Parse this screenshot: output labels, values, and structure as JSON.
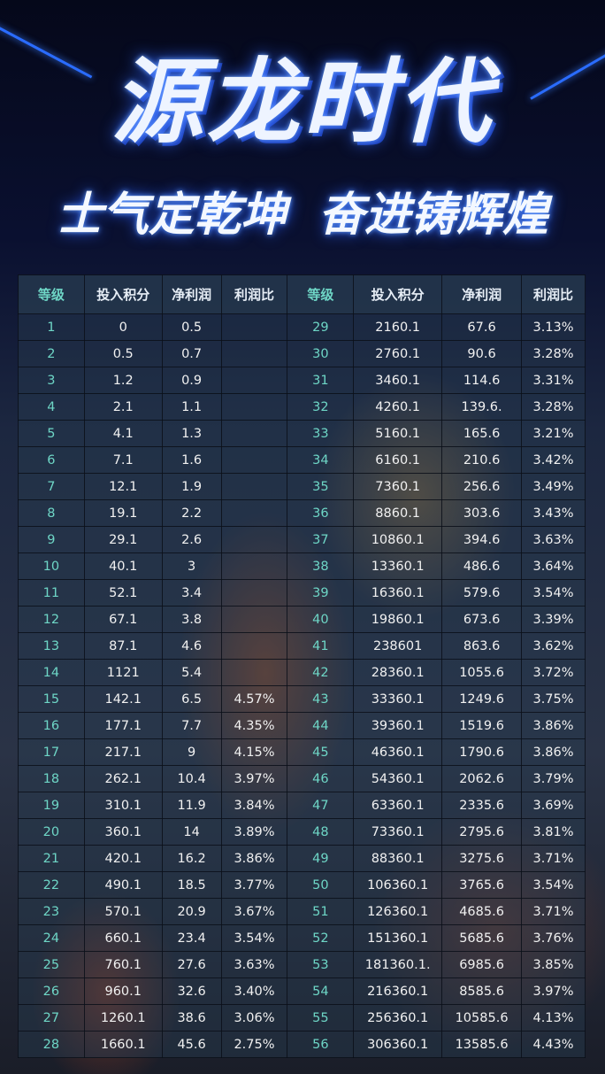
{
  "title": "源龙时代",
  "subtitle": "士气定乾坤 奋进铸辉煌",
  "headers": [
    "等级",
    "投入积分",
    "净利润",
    "利润比",
    "等级",
    "投入积分",
    "净利润",
    "利润比"
  ],
  "rows_left": [
    [
      "1",
      "0",
      "0.5",
      ""
    ],
    [
      "2",
      "0.5",
      "0.7",
      ""
    ],
    [
      "3",
      "1.2",
      "0.9",
      ""
    ],
    [
      "4",
      "2.1",
      "1.1",
      ""
    ],
    [
      "5",
      "4.1",
      "1.3",
      ""
    ],
    [
      "6",
      "7.1",
      "1.6",
      ""
    ],
    [
      "7",
      "12.1",
      "1.9",
      ""
    ],
    [
      "8",
      "19.1",
      "2.2",
      ""
    ],
    [
      "9",
      "29.1",
      "2.6",
      ""
    ],
    [
      "10",
      "40.1",
      "3",
      ""
    ],
    [
      "11",
      "52.1",
      "3.4",
      ""
    ],
    [
      "12",
      "67.1",
      "3.8",
      ""
    ],
    [
      "13",
      "87.1",
      "4.6",
      ""
    ],
    [
      "14",
      "1121",
      "5.4",
      ""
    ],
    [
      "15",
      "142.1",
      "6.5",
      "4.57%"
    ],
    [
      "16",
      "177.1",
      "7.7",
      "4.35%"
    ],
    [
      "17",
      "217.1",
      "9",
      "4.15%"
    ],
    [
      "18",
      "262.1",
      "10.4",
      "3.97%"
    ],
    [
      "19",
      "310.1",
      "11.9",
      "3.84%"
    ],
    [
      "20",
      "360.1",
      "14",
      "3.89%"
    ],
    [
      "21",
      "420.1",
      "16.2",
      "3.86%"
    ],
    [
      "22",
      "490.1",
      "18.5",
      "3.77%"
    ],
    [
      "23",
      "570.1",
      "20.9",
      "3.67%"
    ],
    [
      "24",
      "660.1",
      "23.4",
      "3.54%"
    ],
    [
      "25",
      "760.1",
      "27.6",
      "3.63%"
    ],
    [
      "26",
      "960.1",
      "32.6",
      "3.40%"
    ],
    [
      "27",
      "1260.1",
      "38.6",
      "3.06%"
    ],
    [
      "28",
      "1660.1",
      "45.6",
      "2.75%"
    ]
  ],
  "rows_right": [
    [
      "29",
      "2160.1",
      "67.6",
      "3.13%"
    ],
    [
      "30",
      "2760.1",
      "90.6",
      "3.28%"
    ],
    [
      "31",
      "3460.1",
      "114.6",
      "3.31%"
    ],
    [
      "32",
      "4260.1",
      "139.6.",
      "3.28%"
    ],
    [
      "33",
      "5160.1",
      "165.6",
      "3.21%"
    ],
    [
      "34",
      "6160.1",
      "210.6",
      "3.42%"
    ],
    [
      "35",
      "7360.1",
      "256.6",
      "3.49%"
    ],
    [
      "36",
      "8860.1",
      "303.6",
      "3.43%"
    ],
    [
      "37",
      "10860.1",
      "394.6",
      "3.63%"
    ],
    [
      "38",
      "13360.1",
      "486.6",
      "3.64%"
    ],
    [
      "39",
      "16360.1",
      "579.6",
      "3.54%"
    ],
    [
      "40",
      "19860.1",
      "673.6",
      "3.39%"
    ],
    [
      "41",
      "238601",
      "863.6",
      "3.62%"
    ],
    [
      "42",
      "28360.1",
      "1055.6",
      "3.72%"
    ],
    [
      "43",
      "33360.1",
      "1249.6",
      "3.75%"
    ],
    [
      "44",
      "39360.1",
      "1519.6",
      "3.86%"
    ],
    [
      "45",
      "46360.1",
      "1790.6",
      "3.86%"
    ],
    [
      "46",
      "54360.1",
      "2062.6",
      "3.79%"
    ],
    [
      "47",
      "63360.1",
      "2335.6",
      "3.69%"
    ],
    [
      "48",
      "73360.1",
      "2795.6",
      "3.81%"
    ],
    [
      "49",
      "88360.1",
      "3275.6",
      "3.71%"
    ],
    [
      "50",
      "106360.1",
      "3765.6",
      "3.54%"
    ],
    [
      "51",
      "126360.1",
      "4685.6",
      "3.71%"
    ],
    [
      "52",
      "151360.1",
      "5685.6",
      "3.76%"
    ],
    [
      "53",
      "181360.1.",
      "6985.6",
      "3.85%"
    ],
    [
      "54",
      "216360.1",
      "8585.6",
      "3.97%"
    ],
    [
      "55",
      "256360.1",
      "10585.6",
      "4.13%"
    ],
    [
      "56",
      "306360.1",
      "13585.6",
      "4.43%"
    ]
  ],
  "colors": {
    "level": "#6ed6c6",
    "title_glow": "#2f66ff",
    "background": "#070b1e"
  }
}
